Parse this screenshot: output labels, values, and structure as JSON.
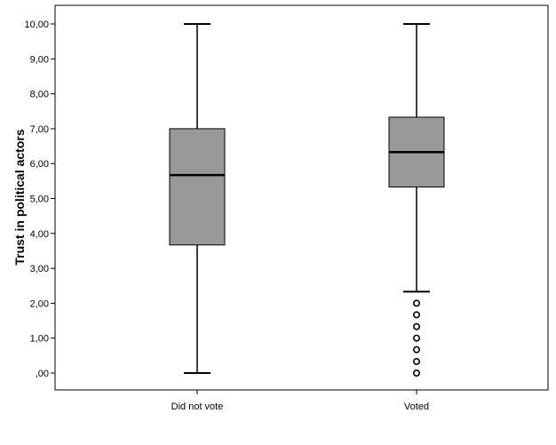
{
  "chart_data": {
    "type": "boxplot",
    "title": "",
    "xlabel": "",
    "ylabel": "Trust in political actors",
    "ylim": [
      0,
      10.5
    ],
    "yticks": [
      {
        "value": 0,
        "label": ",00"
      },
      {
        "value": 1,
        "label": "1,00"
      },
      {
        "value": 2,
        "label": "2,00"
      },
      {
        "value": 3,
        "label": "3,00"
      },
      {
        "value": 4,
        "label": "4,00"
      },
      {
        "value": 5,
        "label": "5,00"
      },
      {
        "value": 6,
        "label": "6,00"
      },
      {
        "value": 7,
        "label": "7,00"
      },
      {
        "value": 8,
        "label": "8,00"
      },
      {
        "value": 9,
        "label": "9,00"
      },
      {
        "value": 10,
        "label": "10,00"
      }
    ],
    "grid": false,
    "colors": {
      "box_fill": "#999999",
      "stroke": "#000000",
      "background": "#ffffff"
    },
    "categories": [
      "Did not vote",
      "Voted"
    ],
    "boxes": [
      {
        "category": "Did not vote",
        "whisker_low": 0,
        "q1": 3.67,
        "median": 5.67,
        "q3": 7.0,
        "whisker_high": 10,
        "outliers": []
      },
      {
        "category": "Voted",
        "whisker_low": 2.33,
        "q1": 5.33,
        "median": 6.33,
        "q3": 7.33,
        "whisker_high": 10,
        "outliers": [
          0,
          0.33,
          0.67,
          1.0,
          1.33,
          1.67,
          2.0
        ]
      }
    ]
  }
}
